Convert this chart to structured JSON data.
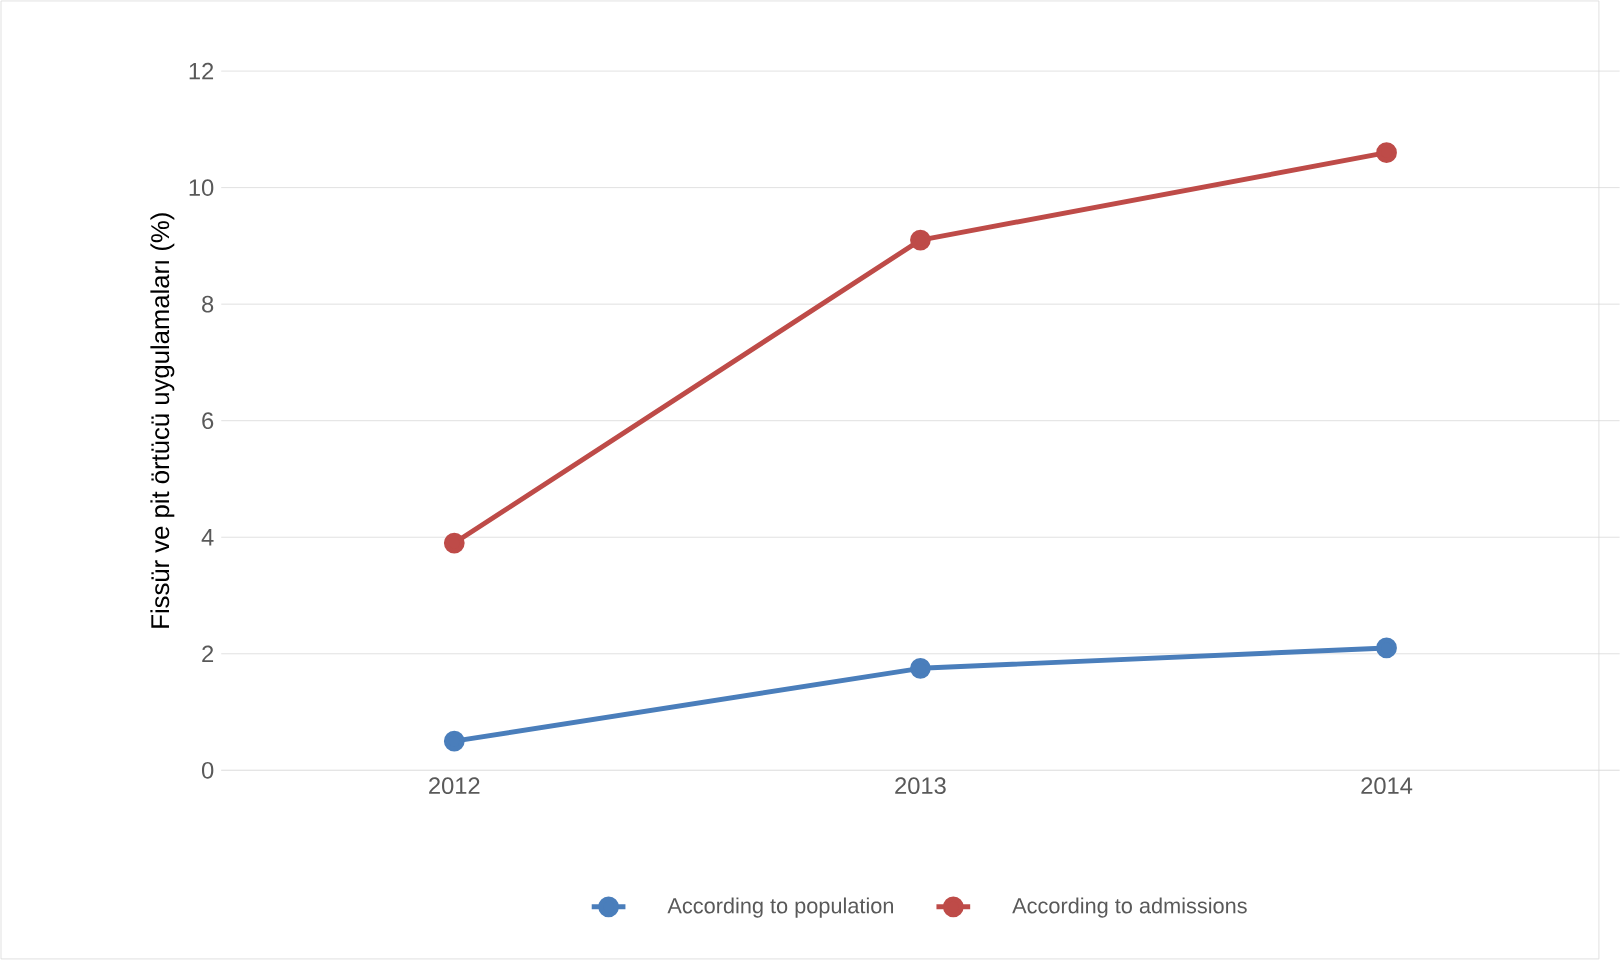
{
  "chart_data": {
    "type": "line",
    "ylabel": "Fissür ve pit örtücü uygulamaları (%)",
    "categories": [
      "2012",
      "2013",
      "2014"
    ],
    "series": [
      {
        "name": "According to population",
        "color": "#4a7ebb",
        "values": [
          0.5,
          1.75,
          2.1
        ]
      },
      {
        "name": "According to admissions",
        "color": "#be4b48",
        "values": [
          3.9,
          9.1,
          10.6
        ]
      }
    ],
    "ylim": [
      0,
      12
    ],
    "yticks": [
      0,
      2,
      4,
      6,
      8,
      10,
      12
    ],
    "grid": "y",
    "legend": "bottom",
    "marker": "circle",
    "line_style": "solid"
  }
}
